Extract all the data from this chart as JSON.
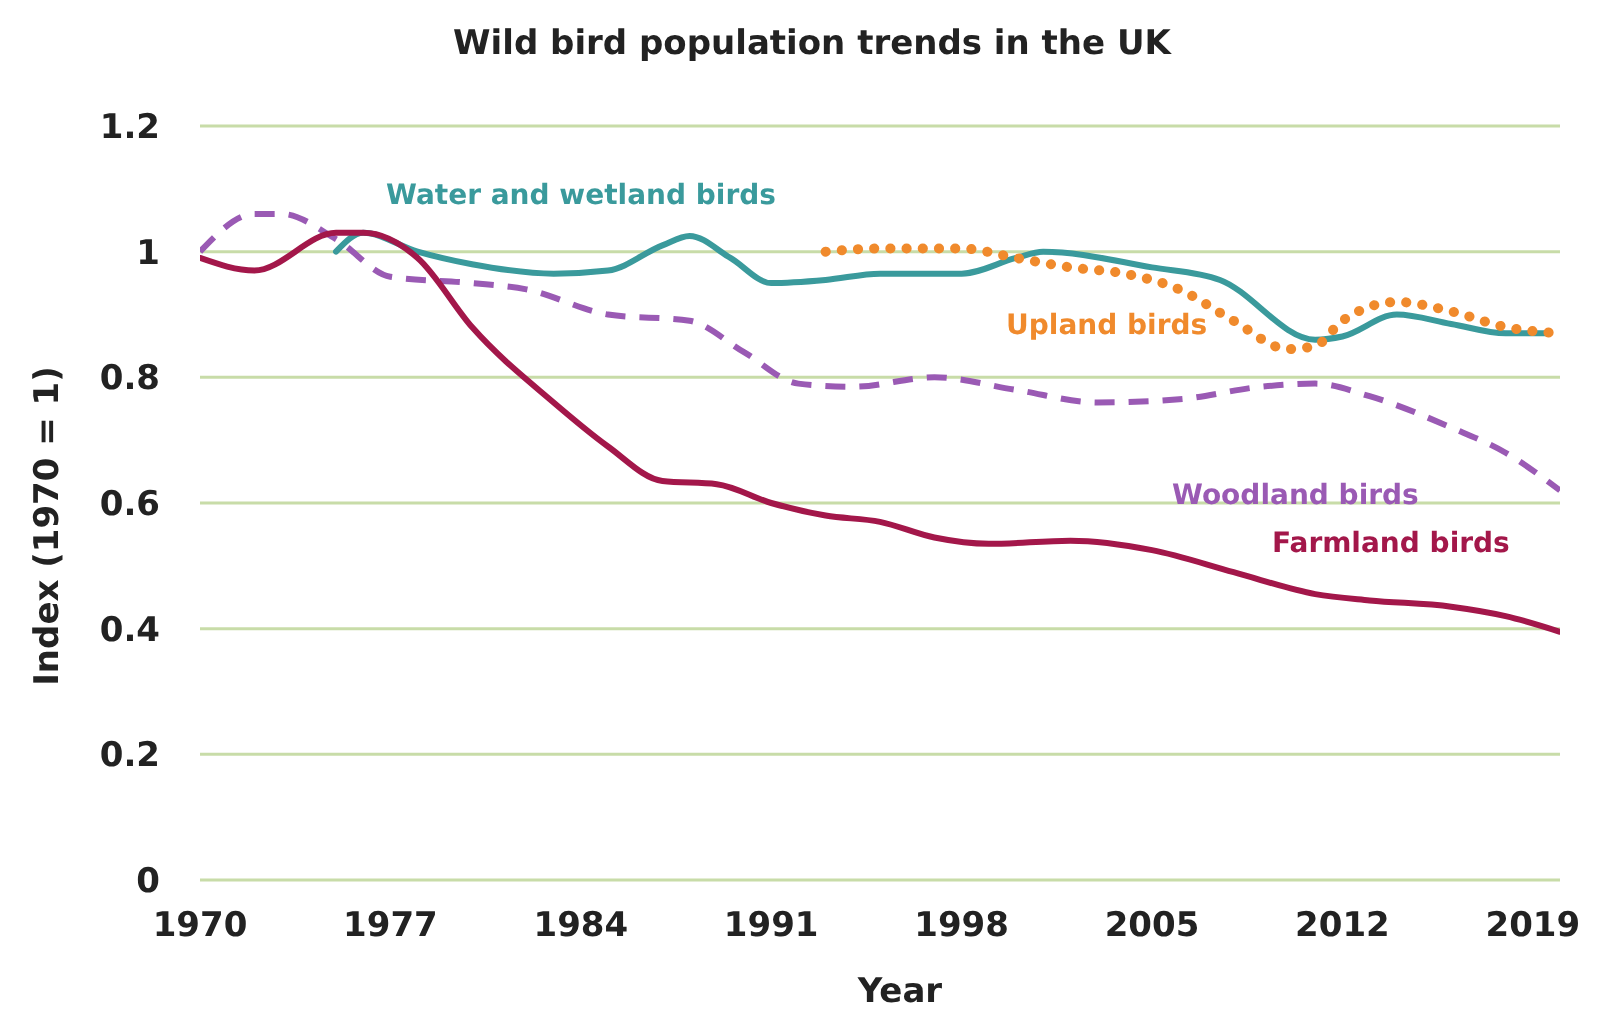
{
  "chart_data": {
    "type": "line",
    "title": "Wild bird population trends in the UK",
    "xlabel": "Year",
    "ylabel": "Index (1970 = 1)",
    "xlim": [
      1970,
      2020
    ],
    "xticks": [
      1970,
      1977,
      1984,
      1991,
      1998,
      2005,
      2012,
      2019
    ],
    "ylim": [
      0,
      1.2
    ],
    "yticks": [
      0,
      {
        "value": 0.2,
        "label": "0.2"
      },
      {
        "value": 0.4,
        "label": "0.4"
      },
      {
        "value": 0.6,
        "label": "0.6"
      },
      {
        "value": 0.8,
        "label": "0.8"
      },
      1,
      {
        "value": 1.2,
        "label": "1.2"
      }
    ],
    "grid": "y",
    "marker": "none",
    "series": [
      {
        "name": "Water and wetland birds",
        "color": "#3a9a9c",
        "line_style": "solid",
        "x": [
          1975,
          1976,
          1978,
          1980,
          1983,
          1985,
          1987,
          1988,
          1989.5,
          1991,
          1993,
          1995,
          1998,
          2000,
          2001,
          2005,
          2007.5,
          2011,
          2012,
          2014,
          2016,
          2018,
          2019.5
        ],
        "values": [
          1.0,
          1.03,
          1.0,
          0.98,
          0.965,
          0.97,
          1.01,
          1.025,
          0.99,
          0.95,
          0.955,
          0.965,
          0.965,
          0.99,
          1.0,
          0.975,
          0.955,
          0.86,
          0.865,
          0.9,
          0.885,
          0.87,
          0.87
        ]
      },
      {
        "name": "Upland birds",
        "color": "#f08a2c",
        "line_style": "dotted",
        "x": [
          1993,
          1995,
          1998,
          2000,
          2002,
          2004,
          2006,
          2008,
          2010,
          2011,
          2012,
          2014,
          2016,
          2018,
          2020
        ],
        "values": [
          1.0,
          1.005,
          1.005,
          0.99,
          0.975,
          0.965,
          0.94,
          0.89,
          0.845,
          0.85,
          0.89,
          0.92,
          0.905,
          0.88,
          0.87
        ]
      },
      {
        "name": "Woodland birds",
        "color": "#9a5ab4",
        "line_style": "dashed",
        "x": [
          1970,
          1972,
          1973,
          1975,
          1977,
          1980,
          1982,
          1985,
          1988,
          1990,
          1992,
          1994,
          1997,
          2000,
          2003,
          2006,
          2009,
          2011,
          2013,
          2016,
          2018,
          2020
        ],
        "values": [
          1.0,
          1.06,
          1.06,
          1.02,
          0.96,
          0.95,
          0.94,
          0.9,
          0.89,
          0.84,
          0.79,
          0.785,
          0.8,
          0.78,
          0.76,
          0.765,
          0.785,
          0.79,
          0.77,
          0.72,
          0.68,
          0.62
        ]
      },
      {
        "name": "Farmland birds",
        "color": "#a3174a",
        "line_style": "solid",
        "x": [
          1970,
          1972,
          1975,
          1976,
          1978,
          1980,
          1983,
          1985,
          1987,
          1989,
          1991,
          1993,
          1995,
          1997,
          1999,
          2002,
          2005,
          2008,
          2011,
          2013,
          2016,
          2018,
          2020
        ],
        "values": [
          0.99,
          0.97,
          1.03,
          1.03,
          0.99,
          0.88,
          0.76,
          0.69,
          0.635,
          0.63,
          0.6,
          0.58,
          0.57,
          0.545,
          0.535,
          0.54,
          0.525,
          0.49,
          0.455,
          0.445,
          0.435,
          0.42,
          0.395
        ]
      }
    ]
  }
}
